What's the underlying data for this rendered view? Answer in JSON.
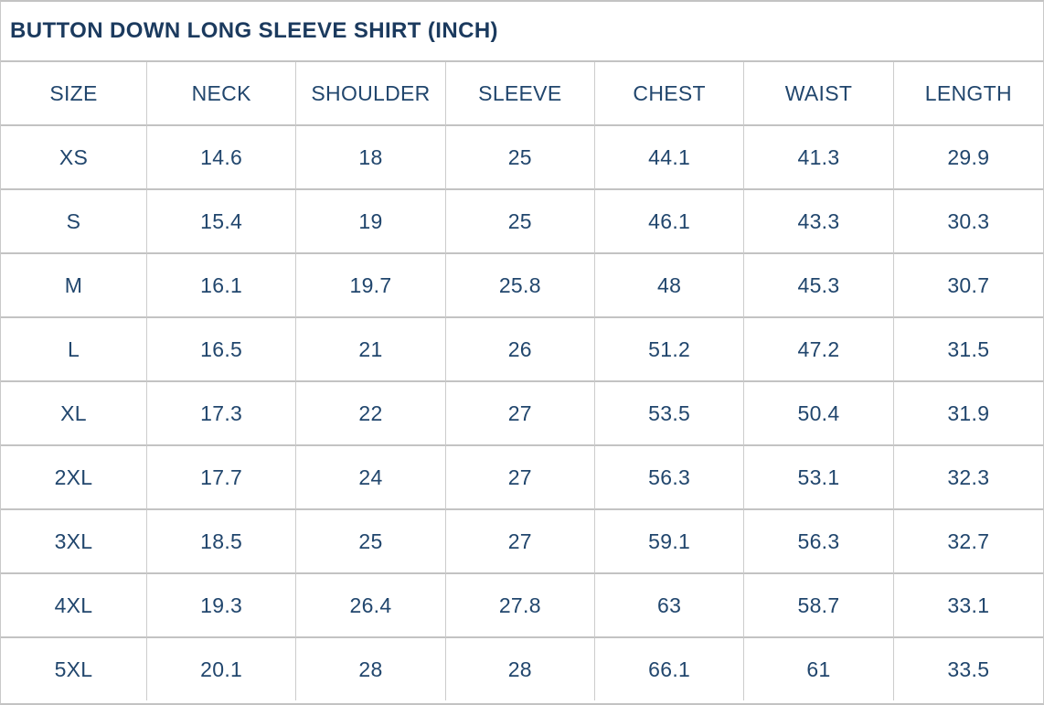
{
  "chart_data": {
    "type": "table",
    "title": "BUTTON DOWN LONG SLEEVE SHIRT (INCH)",
    "unit": "INCH",
    "columns": [
      "SIZE",
      "NECK",
      "SHOULDER",
      "SLEEVE",
      "CHEST",
      "WAIST",
      "LENGTH"
    ],
    "rows": [
      [
        "XS",
        "14.6",
        "18",
        "25",
        "44.1",
        "41.3",
        "29.9"
      ],
      [
        "S",
        "15.4",
        "19",
        "25",
        "46.1",
        "43.3",
        "30.3"
      ],
      [
        "M",
        "16.1",
        "19.7",
        "25.8",
        "48",
        "45.3",
        "30.7"
      ],
      [
        "L",
        "16.5",
        "21",
        "26",
        "51.2",
        "47.2",
        "31.5"
      ],
      [
        "XL",
        "17.3",
        "22",
        "27",
        "53.5",
        "50.4",
        "31.9"
      ],
      [
        "2XL",
        "17.7",
        "24",
        "27",
        "56.3",
        "53.1",
        "32.3"
      ],
      [
        "3XL",
        "18.5",
        "25",
        "27",
        "59.1",
        "56.3",
        "32.7"
      ],
      [
        "4XL",
        "19.3",
        "26.4",
        "27.8",
        "63",
        "58.7",
        "33.1"
      ],
      [
        "5XL",
        "20.1",
        "28",
        "28",
        "66.1",
        "61",
        "33.5"
      ]
    ]
  },
  "colors": {
    "title_text": "#1b3a5e",
    "cell_text": "#21466d",
    "border": "#c3c3c3",
    "background": "#ffffff"
  }
}
